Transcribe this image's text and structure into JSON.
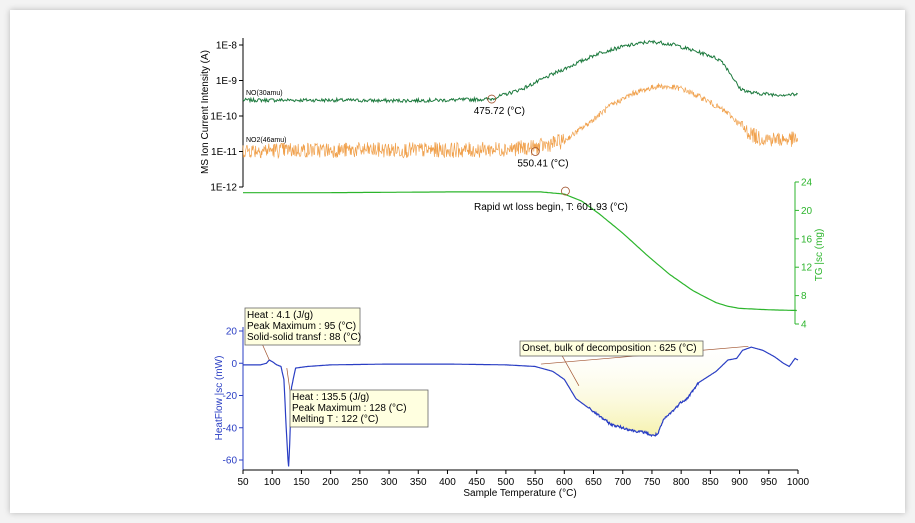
{
  "chart_data": [
    {
      "type": "line",
      "ylabel": "MS Ion Current Intensity (A)",
      "yscale": "log",
      "ylim": [
        1e-12,
        1e-08
      ],
      "yticks": [
        "1E-8",
        "1E-9",
        "1E-10",
        "1E-11",
        "1E-12"
      ],
      "xlim": [
        50,
        1000
      ],
      "series": [
        {
          "name": "NO(30amu)",
          "color": "#1d7a3e",
          "x": [
            50,
            200,
            300,
            400,
            475,
            530,
            580,
            620,
            660,
            700,
            740,
            760,
            790,
            820,
            850,
            870,
            885,
            900,
            920,
            960,
            1000
          ],
          "y": [
            2.8e-10,
            2.8e-10,
            2.7e-10,
            2.8e-10,
            3e-10,
            6e-10,
            1.5e-09,
            3e-09,
            6e-09,
            9e-09,
            1.2e-08,
            1.2e-08,
            1e-08,
            7e-09,
            5e-09,
            3.5e-09,
            1.5e-09,
            6e-10,
            4.5e-10,
            4e-10,
            4e-10
          ]
        },
        {
          "name": "NO2(46amu)",
          "color": "#f0a04b",
          "x": [
            50,
            200,
            350,
            450,
            550,
            600,
            640,
            680,
            720,
            760,
            800,
            840,
            880,
            910,
            930,
            960,
            1000
          ],
          "y": [
            1.1e-11,
            1.1e-11,
            1.1e-11,
            1.1e-11,
            1.3e-11,
            2e-11,
            6e-11,
            2e-10,
            4.5e-10,
            7e-10,
            6e-10,
            3e-10,
            1.2e-10,
            4e-11,
            2.5e-11,
            2.2e-11,
            2.2e-11
          ]
        }
      ],
      "annotations": [
        {
          "x": 475.72,
          "y": 3e-10,
          "label": "475.72  (°C)"
        },
        {
          "x": 550.41,
          "y": 1e-11,
          "label": "550.41  (°C)"
        }
      ]
    },
    {
      "type": "line",
      "ylabel": "TG |sc (mg)",
      "ylim": [
        4,
        24
      ],
      "yticks": [
        "24",
        "20",
        "16",
        "12",
        "8",
        "4"
      ],
      "xlim": [
        50,
        1000
      ],
      "series": [
        {
          "name": "",
          "color": "#2cb52c",
          "x": [
            50,
            200,
            400,
            500,
            560,
            600,
            630,
            660,
            700,
            740,
            780,
            820,
            860,
            880,
            900,
            950,
            1000
          ],
          "y": [
            22.5,
            22.5,
            22.6,
            22.6,
            22.6,
            22.3,
            21.3,
            19.5,
            16.8,
            13.8,
            11.0,
            8.7,
            7.0,
            6.5,
            6.2,
            6.0,
            5.9
          ]
        }
      ],
      "annotations": [
        {
          "x": 601.93,
          "y": 22.3,
          "label": "Rapid wt loss begin, T:  601.93  (°C)"
        }
      ]
    },
    {
      "type": "line",
      "ylabel": "HeatFlow |sc (mW)",
      "xlabel": "Sample Temperature (°C)",
      "ylim": [
        -65,
        25
      ],
      "yticks": [
        "20",
        "0",
        "-20",
        "-40",
        "-60"
      ],
      "xlim": [
        50,
        1000
      ],
      "xticks": [
        "50",
        "100",
        "150",
        "200",
        "250",
        "300",
        "350",
        "400",
        "450",
        "500",
        "550",
        "600",
        "650",
        "700",
        "750",
        "800",
        "850",
        "900",
        "950",
        "1000"
      ],
      "series": [
        {
          "name": "",
          "color": "#2a3ec4",
          "x": [
            50,
            80,
            90,
            95,
            100,
            108,
            115,
            120,
            124,
            127,
            128,
            130,
            133,
            140,
            160,
            200,
            300,
            400,
            500,
            550,
            580,
            600,
            620,
            650,
            680,
            700,
            720,
            740,
            750,
            760,
            770,
            790,
            800,
            810,
            830,
            860,
            880,
            895,
            905,
            920,
            940,
            960,
            975,
            985,
            995,
            1000
          ],
          "y": [
            -1,
            -1,
            0,
            2,
            1,
            -1,
            -2,
            -10,
            -40,
            -60,
            -64,
            -50,
            -15,
            -3,
            -2,
            -1,
            -0.5,
            -0.5,
            -1,
            -2,
            -5,
            -10,
            -22,
            -30,
            -38,
            -40,
            -42,
            -43,
            -45,
            -44,
            -35,
            -28,
            -24,
            -22,
            -12,
            -5,
            2,
            3,
            8,
            10,
            8,
            4,
            0,
            -2,
            3,
            2
          ]
        }
      ],
      "annotations": [
        {
          "box": [
            "Heat :  4.1 (J/g)",
            "Peak Maximum :  95 (°C)",
            "Solid-solid transf :  88 (°C)"
          ]
        },
        {
          "box": [
            "Heat :  135.5 (J/g)",
            "Peak Maximum :  128 (°C)",
            "Melting T :  122 (°C)"
          ]
        },
        {
          "box": [
            "Onset, bulk of decomposition :  625 (°C)"
          ]
        }
      ]
    }
  ]
}
